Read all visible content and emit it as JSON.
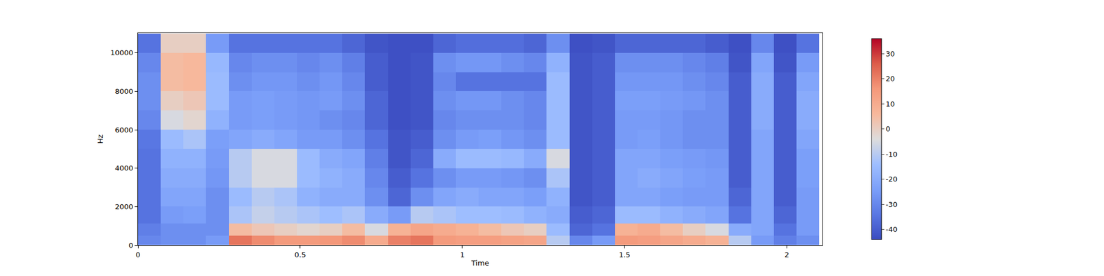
{
  "chart_data": {
    "type": "heatmap",
    "xlabel": "Time",
    "ylabel": "Hz",
    "xlim": [
      0,
      2.11
    ],
    "ylim": [
      0,
      11025
    ],
    "xticks": [
      0,
      0.5,
      1,
      1.5,
      2
    ],
    "yticks": [
      0,
      2000,
      4000,
      6000,
      8000,
      10000
    ],
    "colorbar_range": [
      -44,
      36
    ],
    "colorbar_ticks": [
      -40,
      -30,
      -20,
      -10,
      0,
      10,
      20,
      30
    ],
    "grid": false,
    "x": [
      0.035,
      0.105,
      0.175,
      0.245,
      0.315,
      0.385,
      0.455,
      0.525,
      0.595,
      0.665,
      0.735,
      0.805,
      0.875,
      0.945,
      1.015,
      1.085,
      1.155,
      1.225,
      1.295,
      1.365,
      1.435,
      1.505,
      1.575,
      1.645,
      1.715,
      1.785,
      1.855,
      1.925,
      1.995,
      2.065
    ],
    "y": [
      250,
      750,
      1500,
      2500,
      3500,
      4500,
      5500,
      6500,
      7500,
      8500,
      9500,
      10500
    ],
    "z": [
      [
        -30,
        -28,
        -28,
        -25,
        22,
        18,
        15,
        15,
        16,
        18,
        10,
        20,
        22,
        15,
        14,
        14,
        13,
        12,
        -10,
        -30,
        -25,
        15,
        14,
        12,
        10,
        8,
        -10,
        -25,
        -32,
        -28
      ],
      [
        -32,
        -28,
        -28,
        -28,
        5,
        2,
        0,
        -2,
        0,
        5,
        -5,
        8,
        12,
        10,
        8,
        5,
        2,
        0,
        -15,
        -38,
        -35,
        8,
        10,
        5,
        0,
        -5,
        -20,
        -22,
        -35,
        -25
      ],
      [
        -35,
        -25,
        -24,
        -28,
        -12,
        -8,
        -10,
        -12,
        -14,
        -12,
        -20,
        -25,
        -10,
        -12,
        -14,
        -14,
        -15,
        -18,
        -20,
        -40,
        -38,
        -15,
        -15,
        -18,
        -20,
        -22,
        -35,
        -22,
        -38,
        -25
      ],
      [
        -35,
        -22,
        -22,
        -28,
        -15,
        -10,
        -12,
        -18,
        -20,
        -20,
        -28,
        -38,
        -28,
        -22,
        -20,
        -22,
        -22,
        -24,
        -18,
        -42,
        -40,
        -22,
        -22,
        -24,
        -25,
        -25,
        -38,
        -22,
        -40,
        -25
      ],
      [
        -35,
        -20,
        -20,
        -26,
        -10,
        -5,
        -5,
        -15,
        -18,
        -20,
        -30,
        -40,
        -35,
        -28,
        -25,
        -25,
        -26,
        -28,
        -12,
        -42,
        -40,
        -22,
        -20,
        -22,
        -24,
        -25,
        -40,
        -22,
        -40,
        -24
      ],
      [
        -35,
        -18,
        -18,
        -25,
        -10,
        -5,
        -5,
        -15,
        -20,
        -22,
        -32,
        -42,
        -38,
        -20,
        -15,
        -15,
        -16,
        -20,
        -5,
        -42,
        -40,
        -22,
        -22,
        -24,
        -25,
        -26,
        -40,
        -22,
        -40,
        -24
      ],
      [
        -34,
        -15,
        -12,
        -24,
        -22,
        -20,
        -22,
        -25,
        -25,
        -28,
        -35,
        -42,
        -40,
        -28,
        -25,
        -24,
        -26,
        -28,
        -15,
        -42,
        -40,
        -25,
        -24,
        -26,
        -28,
        -28,
        -40,
        -22,
        -40,
        -22
      ],
      [
        -30,
        -5,
        -2,
        -18,
        -25,
        -24,
        -25,
        -26,
        -28,
        -30,
        -38,
        -43,
        -42,
        -30,
        -28,
        -28,
        -28,
        -30,
        -15,
        -42,
        -40,
        -25,
        -25,
        -26,
        -28,
        -28,
        -40,
        -20,
        -40,
        -20
      ],
      [
        -28,
        0,
        2,
        -15,
        -25,
        -24,
        -25,
        -26,
        -25,
        -28,
        -38,
        -43,
        -42,
        -28,
        -26,
        -26,
        -28,
        -30,
        -15,
        -42,
        -40,
        -24,
        -24,
        -25,
        -26,
        -28,
        -40,
        -20,
        -40,
        -20
      ],
      [
        -28,
        5,
        6,
        -15,
        -28,
        -26,
        -26,
        -28,
        -26,
        -30,
        -40,
        -43,
        -42,
        -30,
        -35,
        -35,
        -35,
        -35,
        -15,
        -42,
        -40,
        -26,
        -26,
        -26,
        -28,
        -30,
        -40,
        -20,
        -40,
        -22
      ],
      [
        -30,
        5,
        6,
        -16,
        -30,
        -28,
        -28,
        -30,
        -28,
        -32,
        -40,
        -43,
        -42,
        -28,
        -26,
        -26,
        -28,
        -30,
        -18,
        -42,
        -40,
        -28,
        -28,
        -28,
        -30,
        -32,
        -42,
        -22,
        -42,
        -25
      ],
      [
        -35,
        0,
        0,
        -25,
        -35,
        -35,
        -35,
        -35,
        -35,
        -38,
        -42,
        -43,
        -43,
        -38,
        -36,
        -36,
        -36,
        -38,
        -28,
        -43,
        -42,
        -38,
        -38,
        -38,
        -38,
        -40,
        -43,
        -30,
        -43,
        -35
      ]
    ]
  }
}
